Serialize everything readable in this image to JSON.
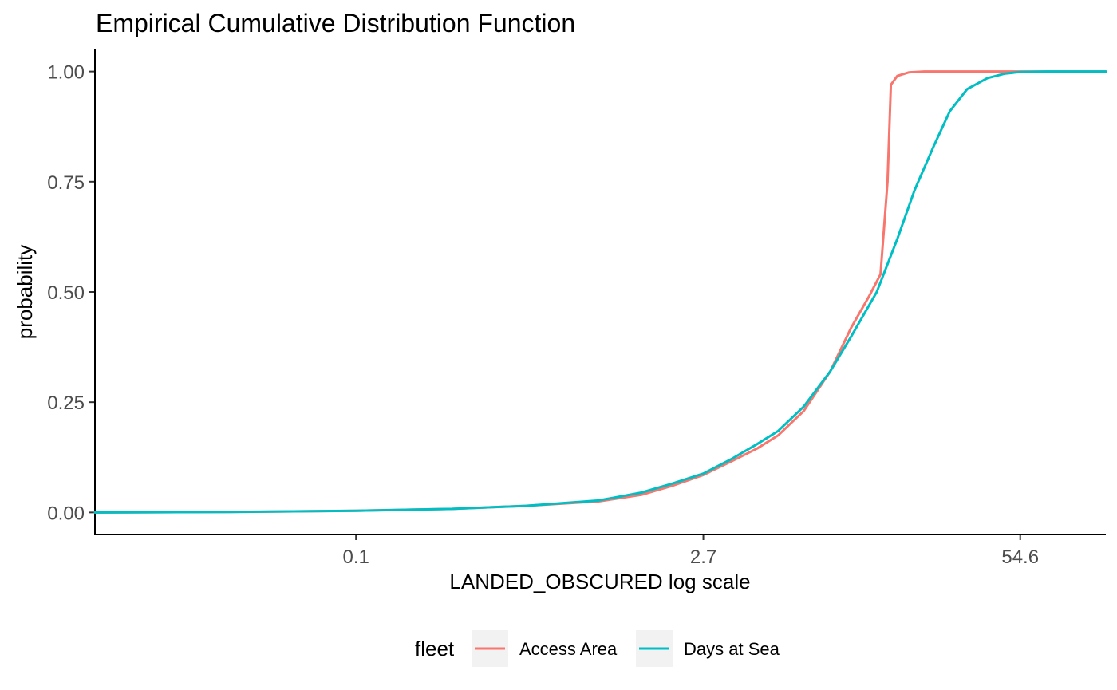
{
  "chart_data": {
    "type": "line",
    "title": "Empirical Cumulative Distribution Function",
    "xlabel": "LANDED_OBSCURED  log scale",
    "ylabel": "probability",
    "x_scale": "log",
    "x_ticks": [
      {
        "value": 0.1,
        "label": "0.1"
      },
      {
        "value": 2.7,
        "label": "2.7"
      },
      {
        "value": 54.6,
        "label": "54.6"
      }
    ],
    "y_ticks": [
      {
        "value": 0.0,
        "label": "0.00"
      },
      {
        "value": 0.25,
        "label": "0.25"
      },
      {
        "value": 0.5,
        "label": "0.50"
      },
      {
        "value": 0.75,
        "label": "0.75"
      },
      {
        "value": 1.0,
        "label": "1.00"
      }
    ],
    "xlim": [
      0.0084,
      123
    ],
    "ylim": [
      -0.05,
      1.05
    ],
    "grid": false,
    "legend": {
      "title": "fleet",
      "position": "bottom"
    },
    "series": [
      {
        "name": "Access Area",
        "color": "#F8766D",
        "x": [
          0.0084,
          0.03,
          0.1,
          0.25,
          0.5,
          1,
          1.5,
          2,
          2.7,
          3.5,
          4.5,
          5.5,
          7,
          9,
          11,
          13,
          14.5,
          15.5,
          16,
          17,
          19,
          22,
          30,
          40,
          54.6,
          123
        ],
        "y": [
          0.0,
          0.001,
          0.004,
          0.008,
          0.015,
          0.025,
          0.04,
          0.06,
          0.085,
          0.115,
          0.145,
          0.175,
          0.23,
          0.32,
          0.42,
          0.49,
          0.54,
          0.75,
          0.97,
          0.99,
          0.998,
          1.0,
          1.0,
          1.0,
          1.0,
          1.0
        ]
      },
      {
        "name": "Days at Sea",
        "color": "#00BFC4",
        "x": [
          0.0084,
          0.03,
          0.1,
          0.25,
          0.5,
          1,
          1.5,
          2,
          2.7,
          3.5,
          4.5,
          5.5,
          7,
          9,
          11,
          14,
          17,
          20,
          24,
          28,
          33,
          40,
          47,
          54.6,
          70,
          123
        ],
        "y": [
          0.0,
          0.001,
          0.004,
          0.008,
          0.015,
          0.027,
          0.045,
          0.065,
          0.088,
          0.12,
          0.155,
          0.185,
          0.24,
          0.32,
          0.4,
          0.5,
          0.62,
          0.73,
          0.83,
          0.91,
          0.96,
          0.985,
          0.995,
          0.999,
          1.0,
          1.0
        ]
      }
    ]
  }
}
